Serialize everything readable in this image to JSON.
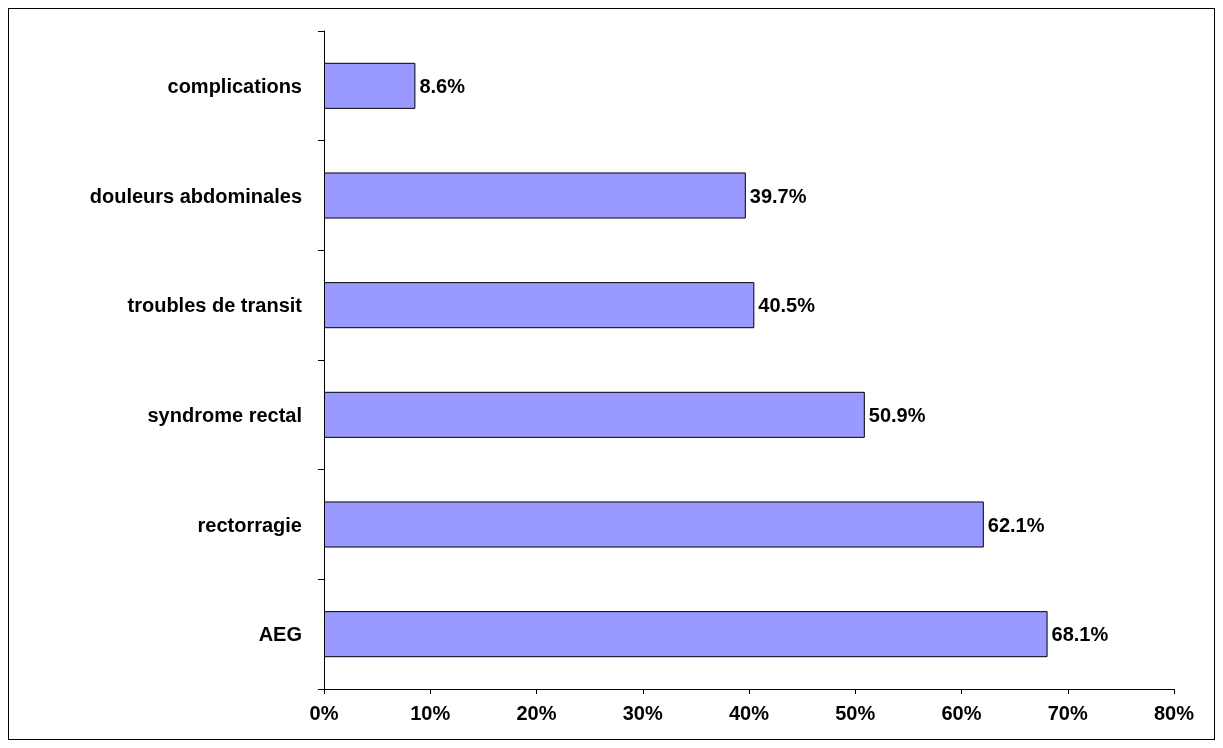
{
  "chart_data": {
    "type": "bar",
    "orientation": "horizontal",
    "categories": [
      "complications",
      "douleurs abdominales",
      "troubles de transit",
      "syndrome rectal",
      "rectorragie",
      "AEG"
    ],
    "values": [
      8.6,
      39.7,
      40.5,
      50.9,
      62.1,
      68.1
    ],
    "value_labels": [
      "8.6%",
      "39.7%",
      "40.5%",
      "50.9%",
      "62.1%",
      "68.1%"
    ],
    "color": "#9999ff",
    "xlim": [
      0,
      80
    ],
    "xticks": [
      {
        "value": 0,
        "label": "0%"
      },
      {
        "value": 10,
        "label": "10%"
      },
      {
        "value": 20,
        "label": "20%"
      },
      {
        "value": 30,
        "label": "30%"
      },
      {
        "value": 40,
        "label": "40%"
      },
      {
        "value": 50,
        "label": "50%"
      },
      {
        "value": 60,
        "label": "60%"
      },
      {
        "value": 70,
        "label": "70%"
      },
      {
        "value": 80,
        "label": "80%"
      }
    ],
    "grid": false
  }
}
